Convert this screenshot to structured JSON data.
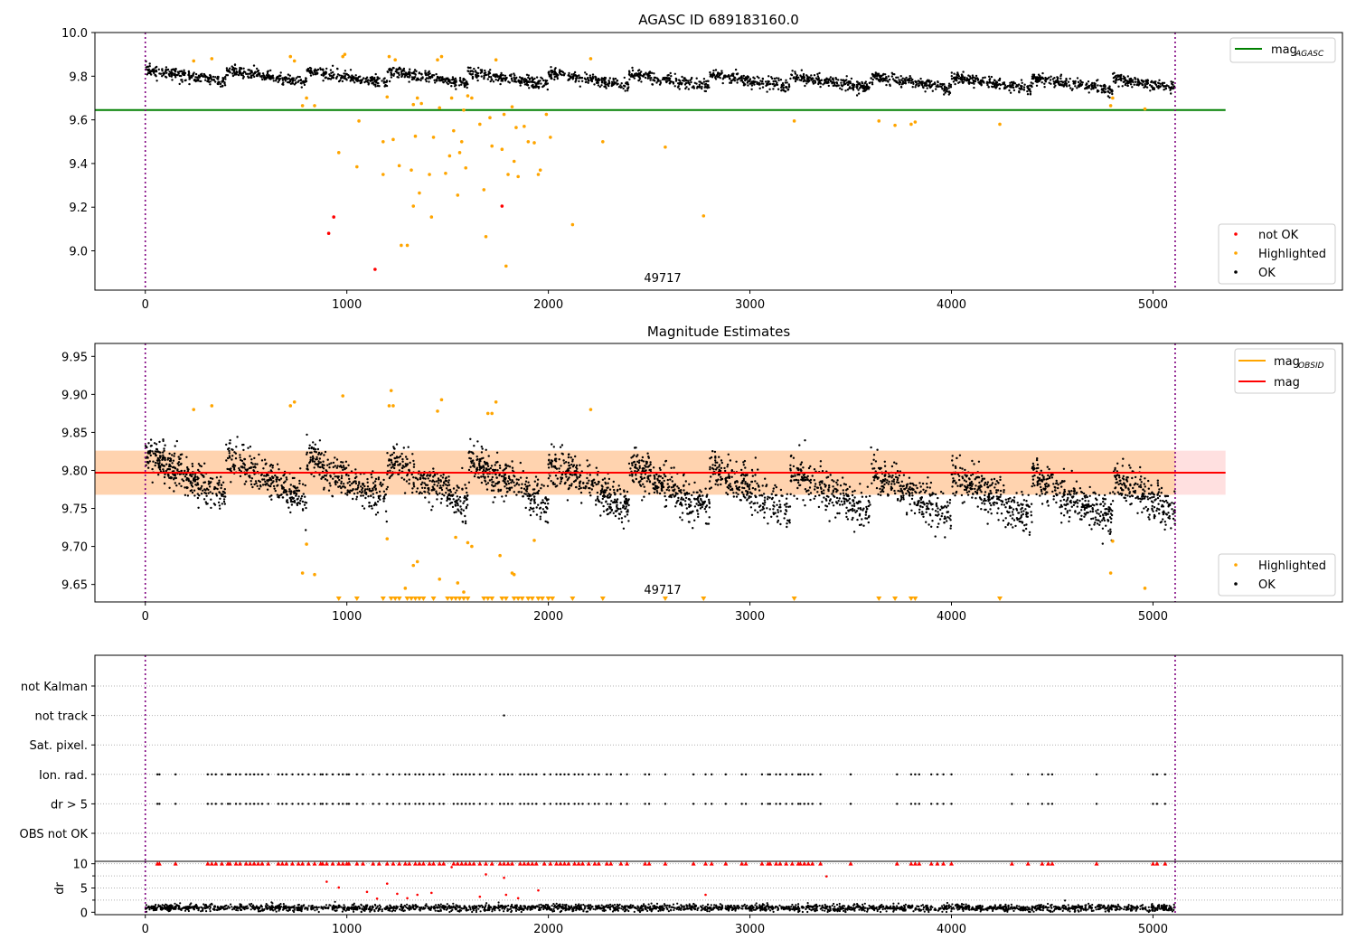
{
  "chart_data": [
    {
      "type": "scatter",
      "title": "AGASC ID 689183160.0",
      "xlim": [
        -250,
        5940
      ],
      "ylim": [
        8.82,
        10.0
      ],
      "xticks": [
        0,
        1000,
        2000,
        3000,
        4000,
        5000
      ],
      "yticks": [
        "9.0",
        "9.2",
        "9.4",
        "9.6",
        "9.8",
        "10.0"
      ],
      "ytick_values": [
        9.0,
        9.2,
        9.4,
        9.6,
        9.8,
        10.0
      ],
      "obsid_label": "49717",
      "obsid_label_x": 2540,
      "vlines": [
        0,
        5110
      ],
      "hline": {
        "name": "mag",
        "sub": "AGASC",
        "value": 9.645,
        "xmax": 5360,
        "color": "#008000"
      },
      "ok_band": {
        "mean": 9.805,
        "amplitude": 0.028,
        "period": 400
      },
      "series": [
        {
          "name": "not OK",
          "color": "#ff0000",
          "points": [
            [
              910,
              9.08
            ],
            [
              935,
              9.155
            ],
            [
              1140,
              8.915
            ],
            [
              1770,
              9.205
            ]
          ]
        },
        {
          "name": "Highlighted",
          "color": "#ffa500",
          "points": [
            [
              240,
              9.87
            ],
            [
              330,
              9.88
            ],
            [
              720,
              9.89
            ],
            [
              740,
              9.87
            ],
            [
              780,
              9.665
            ],
            [
              800,
              9.7
            ],
            [
              840,
              9.665
            ],
            [
              960,
              9.45
            ],
            [
              980,
              9.89
            ],
            [
              990,
              9.9
            ],
            [
              1050,
              9.385
            ],
            [
              1060,
              9.595
            ],
            [
              1180,
              9.35
            ],
            [
              1180,
              9.5
            ],
            [
              1200,
              9.705
            ],
            [
              1210,
              9.89
            ],
            [
              1230,
              9.51
            ],
            [
              1240,
              9.875
            ],
            [
              1260,
              9.39
            ],
            [
              1270,
              9.025
            ],
            [
              1300,
              9.025
            ],
            [
              1320,
              9.37
            ],
            [
              1330,
              9.205
            ],
            [
              1330,
              9.67
            ],
            [
              1340,
              9.525
            ],
            [
              1350,
              9.7
            ],
            [
              1360,
              9.265
            ],
            [
              1370,
              9.675
            ],
            [
              1410,
              9.35
            ],
            [
              1420,
              9.155
            ],
            [
              1430,
              9.52
            ],
            [
              1450,
              9.875
            ],
            [
              1460,
              9.655
            ],
            [
              1470,
              9.89
            ],
            [
              1490,
              9.355
            ],
            [
              1510,
              9.435
            ],
            [
              1520,
              9.7
            ],
            [
              1530,
              9.55
            ],
            [
              1550,
              9.255
            ],
            [
              1560,
              9.45
            ],
            [
              1570,
              9.5
            ],
            [
              1580,
              9.645
            ],
            [
              1590,
              9.38
            ],
            [
              1600,
              9.71
            ],
            [
              1620,
              9.7
            ],
            [
              1660,
              9.58
            ],
            [
              1680,
              9.28
            ],
            [
              1690,
              9.065
            ],
            [
              1710,
              9.61
            ],
            [
              1720,
              9.48
            ],
            [
              1740,
              9.875
            ],
            [
              1770,
              9.465
            ],
            [
              1780,
              9.625
            ],
            [
              1790,
              8.93
            ],
            [
              1800,
              9.35
            ],
            [
              1820,
              9.66
            ],
            [
              1830,
              9.41
            ],
            [
              1840,
              9.565
            ],
            [
              1850,
              9.34
            ],
            [
              1880,
              9.57
            ],
            [
              1900,
              9.5
            ],
            [
              1930,
              9.495
            ],
            [
              1950,
              9.35
            ],
            [
              1960,
              9.37
            ],
            [
              1990,
              9.625
            ],
            [
              2010,
              9.52
            ],
            [
              2120,
              9.12
            ],
            [
              2210,
              9.88
            ],
            [
              2270,
              9.5
            ],
            [
              2580,
              9.475
            ],
            [
              2770,
              9.16
            ],
            [
              3220,
              9.595
            ],
            [
              3640,
              9.595
            ],
            [
              3720,
              9.575
            ],
            [
              3800,
              9.58
            ],
            [
              3820,
              9.59
            ],
            [
              4240,
              9.58
            ],
            [
              4790,
              9.665
            ],
            [
              4800,
              9.7
            ],
            [
              4960,
              9.65
            ]
          ]
        },
        {
          "name": "OK",
          "color": "#000000",
          "points": []
        }
      ],
      "legend_top": [
        {
          "label": "mag",
          "sub": "AGASC",
          "color": "#008000"
        }
      ],
      "legend_bottom": [
        {
          "label": "not OK",
          "color": "#ff0000"
        },
        {
          "label": "Highlighted",
          "color": "#ffa500"
        },
        {
          "label": "OK",
          "color": "#000000"
        }
      ]
    },
    {
      "type": "scatter",
      "title": "Magnitude Estimates",
      "xlim": [
        -250,
        5940
      ],
      "ylim": [
        9.627,
        9.967
      ],
      "xticks": [
        0,
        1000,
        2000,
        3000,
        4000,
        5000
      ],
      "yticks": [
        "9.65",
        "9.70",
        "9.75",
        "9.80",
        "9.85",
        "9.90",
        "9.95"
      ],
      "ytick_values": [
        9.65,
        9.7,
        9.75,
        9.8,
        9.85,
        9.9,
        9.95
      ],
      "obsid_label": "49717",
      "obsid_label_x": 2540,
      "vlines": [
        0,
        5110
      ],
      "mag_line": {
        "name": "mag",
        "value": 9.797,
        "color": "#ff0000"
      },
      "mag_band": {
        "low": 9.768,
        "high": 9.826,
        "xmax": 5360
      },
      "obsid_band": {
        "low": 9.768,
        "high": 9.826,
        "xmax": 5110
      },
      "ok_band": {
        "mean": 9.795,
        "amplitude": 0.028,
        "period": 400
      },
      "series": [
        {
          "name": "Highlighted",
          "color": "#ffa500",
          "points": [
            [
              240,
              9.88
            ],
            [
              330,
              9.885
            ],
            [
              720,
              9.885
            ],
            [
              740,
              9.89
            ],
            [
              780,
              9.665
            ],
            [
              800,
              9.703
            ],
            [
              840,
              9.663
            ],
            [
              980,
              9.898
            ],
            [
              1200,
              9.71
            ],
            [
              1210,
              9.885
            ],
            [
              1220,
              9.905
            ],
            [
              1230,
              9.885
            ],
            [
              1290,
              9.645
            ],
            [
              1330,
              9.675
            ],
            [
              1350,
              9.68
            ],
            [
              1450,
              9.878
            ],
            [
              1460,
              9.657
            ],
            [
              1470,
              9.893
            ],
            [
              1540,
              9.712
            ],
            [
              1550,
              9.652
            ],
            [
              1580,
              9.64
            ],
            [
              1600,
              9.705
            ],
            [
              1620,
              9.7
            ],
            [
              1700,
              9.875
            ],
            [
              1720,
              9.875
            ],
            [
              1740,
              9.89
            ],
            [
              1760,
              9.688
            ],
            [
              1820,
              9.665
            ],
            [
              1830,
              9.663
            ],
            [
              1930,
              9.708
            ],
            [
              2210,
              9.88
            ],
            [
              4790,
              9.665
            ],
            [
              4800,
              9.707
            ],
            [
              4960,
              9.645
            ]
          ]
        },
        {
          "name": "OK",
          "color": "#000000",
          "points": []
        }
      ],
      "bottom_markers": [
        960,
        1050,
        1180,
        1220,
        1240,
        1260,
        1300,
        1320,
        1340,
        1360,
        1380,
        1430,
        1500,
        1520,
        1540,
        1560,
        1580,
        1600,
        1680,
        1700,
        1720,
        1770,
        1790,
        1830,
        1850,
        1870,
        1900,
        1920,
        1950,
        1970,
        2000,
        2020,
        2120,
        2270,
        2580,
        2770,
        3220,
        3640,
        3720,
        3800,
        3820,
        4240
      ],
      "legend_top": [
        {
          "label": "mag",
          "sub": "OBSID",
          "color": "#ffa500"
        },
        {
          "label": "mag",
          "color": "#ff0000"
        }
      ],
      "legend_bottom": [
        {
          "label": "Highlighted",
          "color": "#ffa500"
        },
        {
          "label": "OK",
          "color": "#000000"
        }
      ]
    },
    {
      "type": "scatter",
      "xlim": [
        -250,
        5940
      ],
      "vlines": [
        0,
        5110
      ],
      "categories": [
        "not Kalman",
        "not track",
        "Sat. pixel.",
        "Ion. rad.",
        "dr > 5",
        "OBS not OK"
      ],
      "flag_points": {
        "not track": [
          1780
        ],
        "Ion. rad.": [
          60,
          70,
          150,
          310,
          330,
          350,
          380,
          410,
          420,
          450,
          470,
          500,
          520,
          540,
          560,
          580,
          610,
          660,
          680,
          700,
          730,
          760,
          780,
          810,
          840,
          870,
          880,
          900,
          930,
          960,
          980,
          1000,
          1010,
          1050,
          1080,
          1130,
          1160,
          1200,
          1230,
          1260,
          1290,
          1310,
          1340,
          1360,
          1380,
          1410,
          1430,
          1460,
          1480,
          1530,
          1550,
          1570,
          1590,
          1610,
          1630,
          1660,
          1690,
          1720,
          1760,
          1780,
          1800,
          1820,
          1860,
          1880,
          1900,
          1920,
          1940,
          1980,
          2010,
          2040,
          2060,
          2080,
          2100,
          2130,
          2150,
          2170,
          2200,
          2230,
          2250,
          2290,
          2310,
          2360,
          2390,
          2480,
          2500,
          2580,
          2720,
          2780,
          2810,
          2880,
          2960,
          2980,
          3060,
          3090,
          3100,
          3130,
          3150,
          3180,
          3210,
          3240,
          3250,
          3270,
          3290,
          3310,
          3350,
          3500,
          3730,
          3800,
          3820,
          3840,
          3900,
          3930,
          3960,
          4000,
          4300,
          4380,
          4450,
          4480,
          4500,
          4720,
          5000,
          5020,
          5060
        ],
        "dr > 5": [
          60,
          70,
          150,
          310,
          330,
          350,
          380,
          410,
          420,
          450,
          470,
          500,
          520,
          540,
          560,
          580,
          610,
          660,
          680,
          700,
          730,
          760,
          780,
          810,
          840,
          870,
          880,
          900,
          930,
          960,
          980,
          1000,
          1010,
          1050,
          1080,
          1130,
          1160,
          1200,
          1230,
          1260,
          1290,
          1310,
          1340,
          1360,
          1380,
          1410,
          1430,
          1460,
          1480,
          1530,
          1550,
          1570,
          1590,
          1610,
          1630,
          1660,
          1690,
          1720,
          1760,
          1780,
          1800,
          1820,
          1860,
          1880,
          1900,
          1920,
          1940,
          1980,
          2010,
          2040,
          2060,
          2080,
          2100,
          2130,
          2150,
          2170,
          2200,
          2230,
          2250,
          2290,
          2310,
          2360,
          2390,
          2480,
          2500,
          2580,
          2720,
          2780,
          2810,
          2880,
          2960,
          2980,
          3060,
          3090,
          3100,
          3130,
          3150,
          3180,
          3210,
          3240,
          3250,
          3270,
          3290,
          3310,
          3350,
          3500,
          3730,
          3800,
          3820,
          3840,
          3900,
          3930,
          3960,
          4000,
          4300,
          4380,
          4450,
          4480,
          4500,
          4720,
          5000,
          5020,
          5060
        ]
      }
    },
    {
      "type": "scatter",
      "xlim": [
        -250,
        5940
      ],
      "ylim": [
        -0.5,
        10.5
      ],
      "ylabel": "dr",
      "xticks": [
        0,
        1000,
        2000,
        3000,
        4000,
        5000
      ],
      "yticks": [
        "0",
        "5",
        "10"
      ],
      "ytick_values": [
        0,
        5,
        10
      ],
      "vlines": [
        0,
        5110
      ],
      "dr_points": [
        [
          900,
          6.3
        ],
        [
          960,
          5.1
        ],
        [
          1100,
          4.2
        ],
        [
          1150,
          2.8
        ],
        [
          1200,
          5.9
        ],
        [
          1250,
          3.8
        ],
        [
          1300,
          2.9
        ],
        [
          1350,
          3.6
        ],
        [
          1420,
          4.0
        ],
        [
          1520,
          9.3
        ],
        [
          1660,
          3.2
        ],
        [
          1690,
          7.8
        ],
        [
          1780,
          7.1
        ],
        [
          1790,
          3.6
        ],
        [
          1850,
          2.9
        ],
        [
          1950,
          4.5
        ],
        [
          2780,
          3.6
        ],
        [
          3380,
          7.4
        ]
      ],
      "dr_clipped": [
        60,
        70,
        150,
        310,
        330,
        350,
        380,
        410,
        420,
        450,
        470,
        500,
        520,
        540,
        560,
        580,
        610,
        660,
        680,
        700,
        730,
        760,
        780,
        810,
        840,
        870,
        880,
        900,
        930,
        960,
        980,
        1000,
        1010,
        1050,
        1080,
        1130,
        1160,
        1200,
        1230,
        1260,
        1290,
        1310,
        1340,
        1360,
        1380,
        1410,
        1430,
        1460,
        1480,
        1530,
        1550,
        1570,
        1590,
        1610,
        1630,
        1660,
        1690,
        1720,
        1760,
        1780,
        1800,
        1820,
        1860,
        1880,
        1900,
        1920,
        1940,
        1980,
        2010,
        2040,
        2060,
        2080,
        2100,
        2130,
        2150,
        2170,
        2200,
        2230,
        2250,
        2290,
        2310,
        2360,
        2390,
        2480,
        2500,
        2580,
        2720,
        2780,
        2810,
        2880,
        2960,
        2980,
        3060,
        3090,
        3100,
        3130,
        3150,
        3180,
        3210,
        3240,
        3250,
        3270,
        3290,
        3310,
        3350,
        3500,
        3730,
        3800,
        3820,
        3840,
        3900,
        3930,
        3960,
        4000,
        4300,
        4380,
        4450,
        4480,
        4500,
        4720,
        5000,
        5020,
        5060
      ]
    }
  ]
}
